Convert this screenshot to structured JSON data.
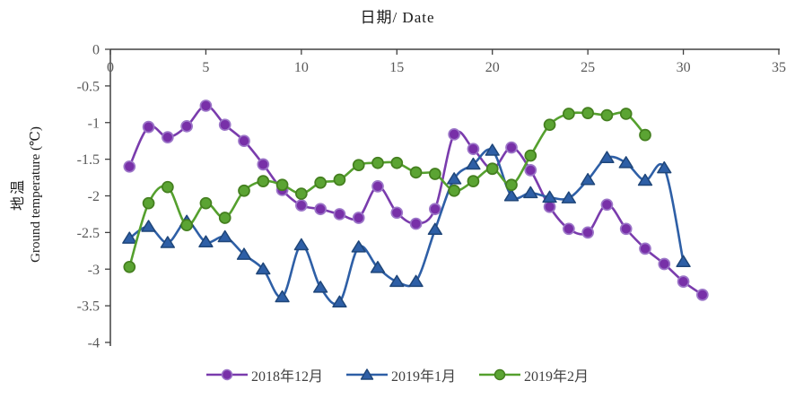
{
  "chart": {
    "title": "日期/ Date",
    "y_axis_label_line1": "地温",
    "y_axis_label_line2": "Ground temperature (℃)"
  },
  "chart_data": {
    "type": "line",
    "title": "日期/ Date",
    "xlabel": "日期/ Date",
    "ylabel": "地温 Ground temperature (℃)",
    "x_range": [
      0,
      35
    ],
    "y_range": [
      -4,
      0
    ],
    "x_ticks": [
      "0",
      "5",
      "10",
      "15",
      "20",
      "25",
      "30",
      "35"
    ],
    "y_ticks": [
      "0",
      "-0.5",
      "-1",
      "-1.5",
      "-2",
      "-2.5",
      "-3",
      "-3.5",
      "-4"
    ],
    "grid": false,
    "legend_position": "bottom",
    "axis_color": "#404040",
    "tick_label_color": "#595959",
    "series": [
      {
        "name": "2018年12月",
        "marker": "circle",
        "line_color": "#7A3CAD",
        "marker_fill": "#7830A8",
        "marker_edge": "#9C76C8",
        "x": [
          1,
          2,
          3,
          4,
          5,
          6,
          7,
          8,
          9,
          10,
          11,
          12,
          13,
          14,
          15,
          16,
          17,
          18,
          19,
          20,
          21,
          22,
          23,
          24,
          25,
          26,
          27,
          28,
          29,
          30,
          31
        ],
        "values": [
          -1.6,
          -1.06,
          -1.2,
          -1.05,
          -0.77,
          -1.03,
          -1.25,
          -1.57,
          -1.92,
          -2.13,
          -2.18,
          -2.25,
          -2.3,
          -1.87,
          -2.23,
          -2.38,
          -2.18,
          -1.16,
          -1.36,
          -1.63,
          -1.34,
          -1.65,
          -2.15,
          -2.45,
          -2.5,
          -2.12,
          -2.45,
          -2.72,
          -2.93,
          -3.17,
          -3.35
        ]
      },
      {
        "name": "2019年1月",
        "marker": "triangle",
        "line_color": "#2E5FA6",
        "marker_fill": "#2E5FA6",
        "marker_edge": "#1F4679",
        "x": [
          1,
          2,
          3,
          4,
          5,
          6,
          7,
          8,
          9,
          10,
          11,
          12,
          13,
          14,
          15,
          16,
          17,
          18,
          19,
          20,
          21,
          22,
          23,
          24,
          25,
          26,
          27,
          28,
          29,
          30
        ],
        "values": [
          -2.58,
          -2.42,
          -2.64,
          -2.35,
          -2.63,
          -2.56,
          -2.8,
          -3.0,
          -3.38,
          -2.67,
          -3.25,
          -3.45,
          -2.7,
          -2.98,
          -3.17,
          -3.17,
          -2.46,
          -1.77,
          -1.57,
          -1.38,
          -2.0,
          -1.96,
          -2.02,
          -2.03,
          -1.78,
          -1.48,
          -1.55,
          -1.79,
          -1.62,
          -2.9
        ]
      },
      {
        "name": "2019年2月",
        "marker": "circle",
        "line_color": "#55A02E",
        "marker_fill": "#5BA433",
        "marker_edge": "#447F1F",
        "x": [
          1,
          2,
          3,
          4,
          5,
          6,
          7,
          8,
          9,
          10,
          11,
          12,
          13,
          14,
          15,
          16,
          17,
          18,
          19,
          20,
          21,
          22,
          23,
          24,
          25,
          26,
          27,
          28
        ],
        "values": [
          -2.97,
          -2.1,
          -1.88,
          -2.4,
          -2.1,
          -2.3,
          -1.93,
          -1.8,
          -1.85,
          -1.97,
          -1.82,
          -1.78,
          -1.58,
          -1.55,
          -1.55,
          -1.68,
          -1.7,
          -1.93,
          -1.8,
          -1.63,
          -1.85,
          -1.45,
          -1.03,
          -0.88,
          -0.87,
          -0.9,
          -0.88,
          -1.17
        ]
      }
    ]
  }
}
